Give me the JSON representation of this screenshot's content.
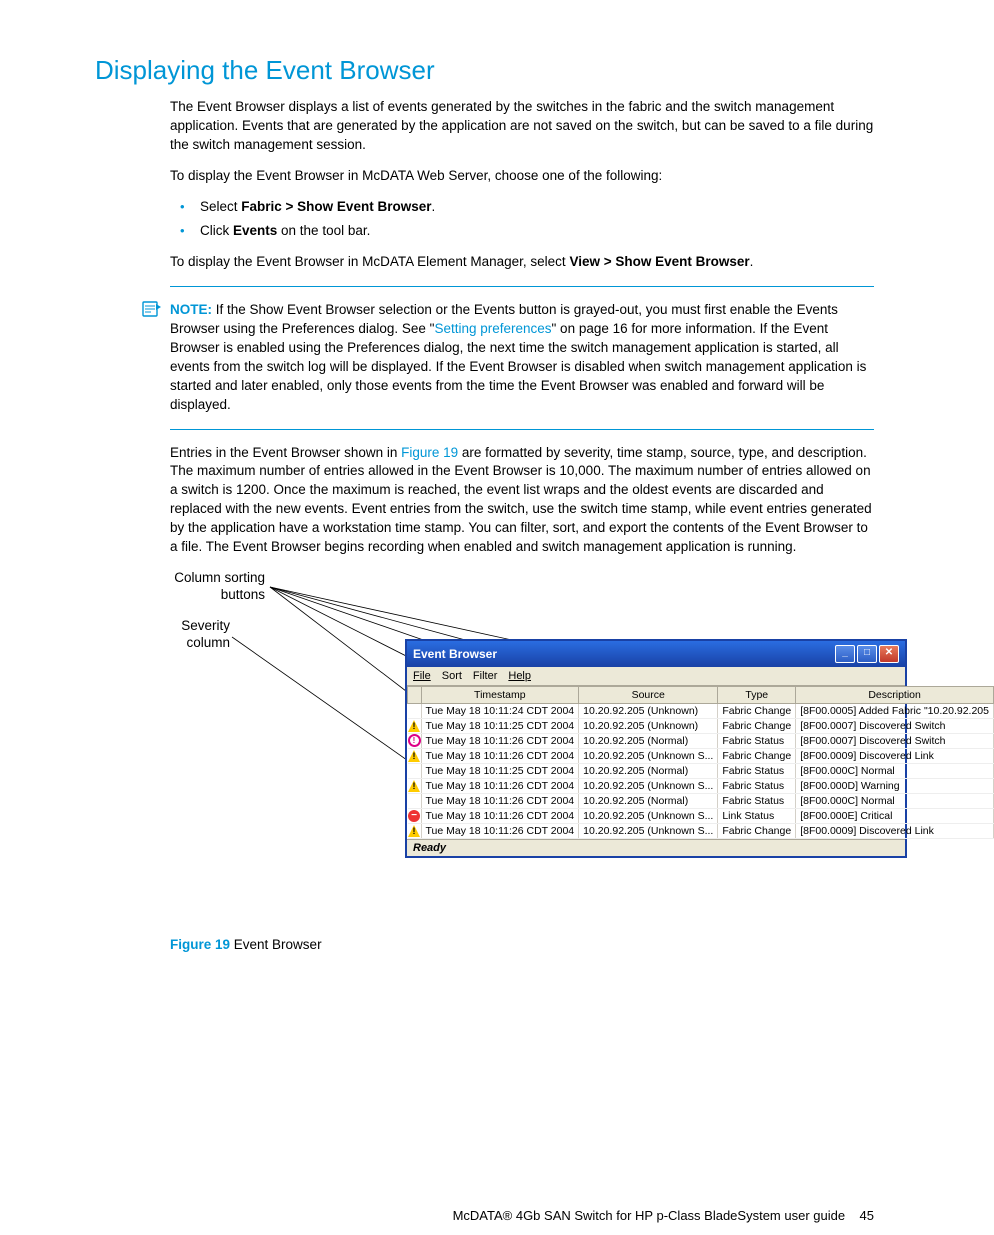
{
  "heading": "Displaying the Event Browser",
  "p1": "The Event Browser displays a list of events generated by the switches in the fabric and the switch management application. Events that are generated by the application are not saved on the switch, but can be saved to a file during the switch management session.",
  "p2": "To display the Event Browser in McDATA Web Server, choose one of the following:",
  "bullets": {
    "b1a": "Select ",
    "b1b": "Fabric > Show Event Browser",
    "b1c": ".",
    "b2a": "Click ",
    "b2b": "Events",
    "b2c": " on the tool bar."
  },
  "p3a": "To display the Event Browser in McDATA Element Manager, select ",
  "p3b": "View > Show Event Browser",
  "p3c": ".",
  "noteLabel": "NOTE:",
  "noteA": "If the Show Event Browser selection or the Events button is grayed-out, you must first enable the Events Browser using the Preferences dialog. See \"",
  "noteLink": "Setting preferences",
  "noteB": "\" on page 16 for more information. If the Event Browser is enabled using the Preferences dialog, the next time the switch management application is started, all events from the switch log will be displayed. If the Event Browser is disabled when switch management application is started and later enabled, only those events from the time the Event Browser was enabled and forward will be displayed.",
  "p4a": "Entries in the Event Browser shown in ",
  "p4link": "Figure 19",
  "p4b": " are formatted by severity, time stamp, source, type, and description. The maximum number of entries allowed in the Event Browser is 10,000. The maximum number of entries allowed on a switch is 1200. Once the maximum is reached, the event list wraps and the oldest events are discarded and replaced with the new events. Event entries from the switch, use the switch time stamp, while event entries generated by the application have a workstation time stamp. You can filter, sort, and export the contents of the Event Browser to a file. The Event Browser begins recording when enabled and switch management application is running.",
  "callout1a": "Column sorting",
  "callout1b": "buttons",
  "callout2a": "Severity",
  "callout2b": "column",
  "figCaptionBold": "Figure 19",
  "figCaptionRest": " Event Browser",
  "footer": "McDATA® 4Gb SAN Switch for HP p-Class BladeSystem user guide",
  "pageNum": "45",
  "window": {
    "title": "Event Browser",
    "menus": {
      "file": "File",
      "sort": "Sort",
      "filter": "Filter",
      "help": "Help"
    },
    "cols": {
      "c0": "",
      "c1": "Timestamp",
      "c2": "Source",
      "c3": "Type",
      "c4": "Description"
    },
    "rows": [
      {
        "sev": "",
        "ts": "Tue May 18 10:11:24 CDT 2004",
        "src": "10.20.92.205 (Unknown)",
        "type": "Fabric Change",
        "desc": "[8F00.0005] Added Fabric \"10.20.92.205"
      },
      {
        "sev": "warn",
        "ts": "Tue May 18 10:11:25 CDT 2004",
        "src": "10.20.92.205 (Unknown)",
        "type": "Fabric Change",
        "desc": "[8F00.0007] Discovered Switch"
      },
      {
        "sev": "info",
        "ts": "Tue May 18 10:11:26 CDT 2004",
        "src": "10.20.92.205 (Normal)",
        "type": "Fabric Status",
        "desc": "[8F00.0007] Discovered Switch"
      },
      {
        "sev": "warn",
        "ts": "Tue May 18 10:11:26 CDT 2004",
        "src": "10.20.92.205 (Unknown S...",
        "type": "Fabric Change",
        "desc": "[8F00.0009] Discovered Link"
      },
      {
        "sev": "",
        "ts": "Tue May 18 10:11:25 CDT 2004",
        "src": "10.20.92.205 (Normal)",
        "type": "Fabric Status",
        "desc": "[8F00.000C] Normal"
      },
      {
        "sev": "warn",
        "ts": "Tue May 18 10:11:26 CDT 2004",
        "src": "10.20.92.205 (Unknown S...",
        "type": "Fabric Status",
        "desc": "[8F00.000D] Warning"
      },
      {
        "sev": "",
        "ts": "Tue May 18 10:11:26 CDT 2004",
        "src": "10.20.92.205 (Normal)",
        "type": "Fabric Status",
        "desc": "[8F00.000C] Normal"
      },
      {
        "sev": "crit",
        "ts": "Tue May 18 10:11:26 CDT 2004",
        "src": "10.20.92.205 (Unknown S...",
        "type": "Link Status",
        "desc": "[8F00.000E] Critical"
      },
      {
        "sev": "warn",
        "ts": "Tue May 18 10:11:26 CDT 2004",
        "src": "10.20.92.205 (Unknown S...",
        "type": "Fabric Change",
        "desc": "[8F00.0009] Discovered Link"
      }
    ],
    "status": "Ready"
  }
}
